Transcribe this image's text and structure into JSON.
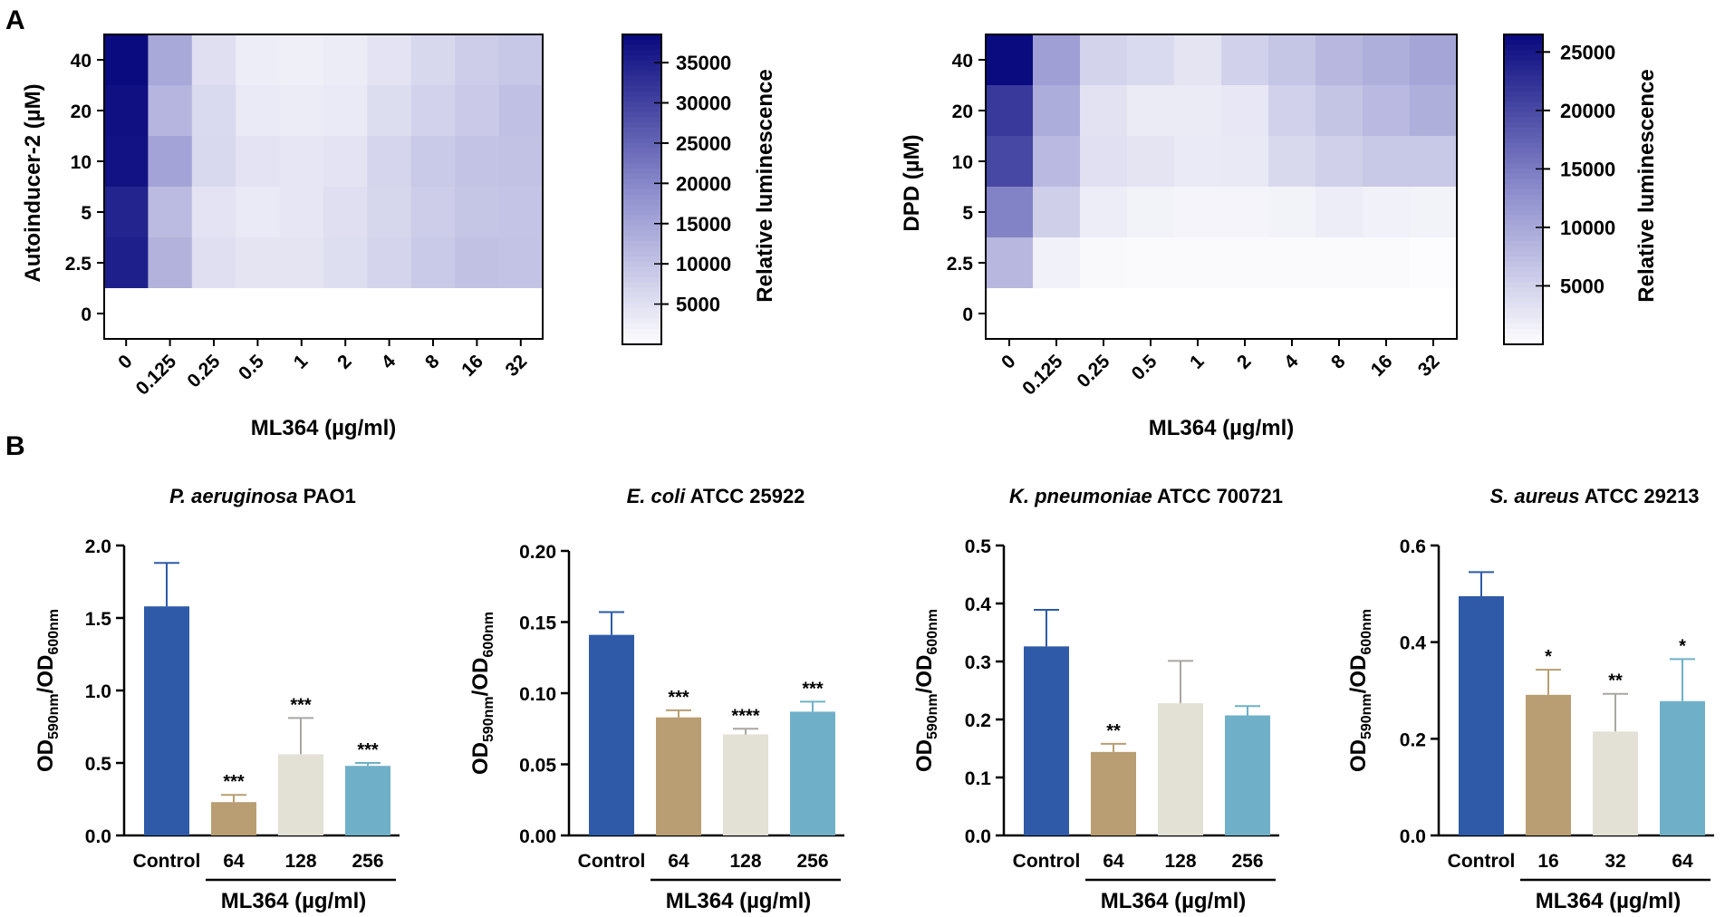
{
  "panel_labels": {
    "a": "A",
    "b": "B"
  },
  "chart_data": [
    {
      "type": "heatmap",
      "id": "hm-ai2",
      "xlabel": "ML364 (µg/ml)",
      "ylabel": "Autoinducer-2 (µM)",
      "x_categories": [
        "0",
        "0.125",
        "0.25",
        "0.5",
        "1",
        "2",
        "4",
        "8",
        "16",
        "32"
      ],
      "y_categories": [
        "40",
        "20",
        "10",
        "5",
        "2.5",
        "0"
      ],
      "colorbar_label": "Relative luminescence",
      "colorbar_ticks": [
        "35000",
        "30000",
        "25000",
        "20000",
        "15000",
        "10000",
        "5000"
      ],
      "colorbar_range": [
        0,
        38500
      ],
      "colors": {
        "low": "#ffffff",
        "mid": "#8e8ece",
        "high": "#0b0b80"
      },
      "values": [
        [
          38500,
          14800,
          5400,
          3000,
          2800,
          3200,
          4800,
          6800,
          8600,
          9600
        ],
        [
          37800,
          12600,
          6400,
          3600,
          3200,
          3600,
          5800,
          7600,
          9000,
          10800
        ],
        [
          37500,
          15600,
          6600,
          4800,
          4300,
          4800,
          7200,
          9200,
          10200,
          10400
        ],
        [
          34800,
          11600,
          4800,
          3600,
          4200,
          5400,
          6900,
          8600,
          9800,
          10000
        ],
        [
          35600,
          13200,
          5400,
          4600,
          4600,
          5600,
          7400,
          9200,
          10600,
          10300
        ],
        [
          0,
          0,
          0,
          0,
          0,
          0,
          0,
          0,
          0,
          0
        ]
      ]
    },
    {
      "type": "heatmap",
      "id": "hm-dpd",
      "xlabel": "ML364 (µg/ml)",
      "ylabel": "DPD (µM)",
      "x_categories": [
        "0",
        "0.125",
        "0.25",
        "0.5",
        "1",
        "2",
        "4",
        "8",
        "16",
        "32"
      ],
      "y_categories": [
        "40",
        "20",
        "10",
        "5",
        "2.5",
        "0"
      ],
      "colorbar_label": "Relative luminescence",
      "colorbar_ticks": [
        "25000",
        "20000",
        "15000",
        "10000",
        "5000"
      ],
      "colorbar_range": [
        0,
        26500
      ],
      "colors": {
        "low": "#ffffff",
        "mid": "#8e8ece",
        "high": "#0b0b80"
      },
      "values": [
        [
          26500,
          11200,
          5200,
          4400,
          3200,
          5400,
          6800,
          8400,
          9400,
          10500
        ],
        [
          21800,
          9600,
          3400,
          2400,
          2400,
          2800,
          5400,
          6900,
          8200,
          9400
        ],
        [
          20400,
          8200,
          3600,
          3200,
          2500,
          2600,
          4500,
          5500,
          6400,
          6400
        ],
        [
          14500,
          5600,
          2100,
          1500,
          1300,
          1300,
          1500,
          2100,
          1600,
          1500
        ],
        [
          8400,
          1600,
          700,
          600,
          600,
          600,
          600,
          600,
          600,
          300
        ],
        [
          0,
          0,
          0,
          0,
          0,
          0,
          0,
          0,
          0,
          0
        ]
      ]
    },
    {
      "type": "bar",
      "id": "bar-pa",
      "title_italic": "P. aeruginosa",
      "title_rest": " PAO1",
      "ylabel_main": "OD",
      "ylabel_sub1": "590nm",
      "ylabel_sep": "/OD",
      "ylabel_sub2": "600nm",
      "categories": [
        "Control",
        "64",
        "128",
        "256"
      ],
      "values": [
        1.58,
        0.23,
        0.56,
        0.48
      ],
      "errors": [
        0.3,
        0.05,
        0.25,
        0.02
      ],
      "significance": [
        "",
        "***",
        "***",
        "***"
      ],
      "ylim": [
        0,
        2.0
      ],
      "yticks": [
        "0.0",
        "0.5",
        "1.0",
        "1.5",
        "2.0"
      ],
      "ytick_values": [
        0,
        0.5,
        1.0,
        1.5,
        2.0
      ],
      "group_label": "ML364 (µg/ml)",
      "colors": [
        "#2e5aa8",
        "#b89e72",
        "#e3e0d6",
        "#6fb0c8"
      ]
    },
    {
      "type": "bar",
      "id": "bar-ec",
      "title_italic": "E. coli",
      "title_rest": " ATCC 25922",
      "ylabel_main": "OD",
      "ylabel_sub1": "590nm",
      "ylabel_sep": "/OD",
      "ylabel_sub2": "600nm",
      "categories": [
        "Control",
        "64",
        "128",
        "256"
      ],
      "values": [
        0.141,
        0.083,
        0.071,
        0.087
      ],
      "errors": [
        0.016,
        0.005,
        0.004,
        0.007
      ],
      "significance": [
        "",
        "***",
        "****",
        "***"
      ],
      "ylim": [
        0,
        0.2
      ],
      "yticks": [
        "0.00",
        "0.05",
        "0.10",
        "0.15",
        "0.20"
      ],
      "ytick_values": [
        0,
        0.05,
        0.1,
        0.15,
        0.2
      ],
      "group_label": "ML364 (µg/ml)",
      "colors": [
        "#2e5aa8",
        "#b89e72",
        "#e3e0d6",
        "#6fb0c8"
      ]
    },
    {
      "type": "bar",
      "id": "bar-kp",
      "title_italic": "K. pneumoniae",
      "title_rest": " ATCC 700721",
      "ylabel_main": "OD",
      "ylabel_sub1": "590nm",
      "ylabel_sep": "/OD",
      "ylabel_sub2": "600nm",
      "categories": [
        "Control",
        "64",
        "128",
        "256"
      ],
      "values": [
        0.326,
        0.144,
        0.228,
        0.207
      ],
      "errors": [
        0.063,
        0.014,
        0.073,
        0.016
      ],
      "significance": [
        "",
        "**",
        "",
        ""
      ],
      "ylim": [
        0,
        0.5
      ],
      "yticks": [
        "0.0",
        "0.1",
        "0.2",
        "0.3",
        "0.4",
        "0.5"
      ],
      "ytick_values": [
        0,
        0.1,
        0.2,
        0.3,
        0.4,
        0.5
      ],
      "group_label": "ML364 (µg/ml)",
      "colors": [
        "#2e5aa8",
        "#b89e72",
        "#e3e0d6",
        "#6fb0c8"
      ]
    },
    {
      "type": "bar",
      "id": "bar-sa",
      "title_italic": "S. aureus",
      "title_rest": " ATCC 29213",
      "ylabel_main": "OD",
      "ylabel_sub1": "590nm",
      "ylabel_sep": "/OD",
      "ylabel_sub2": "600nm",
      "categories": [
        "Control",
        "16",
        "32",
        "64"
      ],
      "values": [
        0.495,
        0.291,
        0.215,
        0.278
      ],
      "errors": [
        0.05,
        0.052,
        0.078,
        0.087
      ],
      "significance": [
        "",
        "*",
        "**",
        "*"
      ],
      "ylim": [
        0,
        0.6
      ],
      "yticks": [
        "0.0",
        "0.2",
        "0.4",
        "0.6"
      ],
      "ytick_values": [
        0,
        0.2,
        0.4,
        0.6
      ],
      "group_label": "ML364 (µg/ml)",
      "colors": [
        "#2e5aa8",
        "#b89e72",
        "#e3e0d6",
        "#6fb0c8"
      ]
    }
  ]
}
